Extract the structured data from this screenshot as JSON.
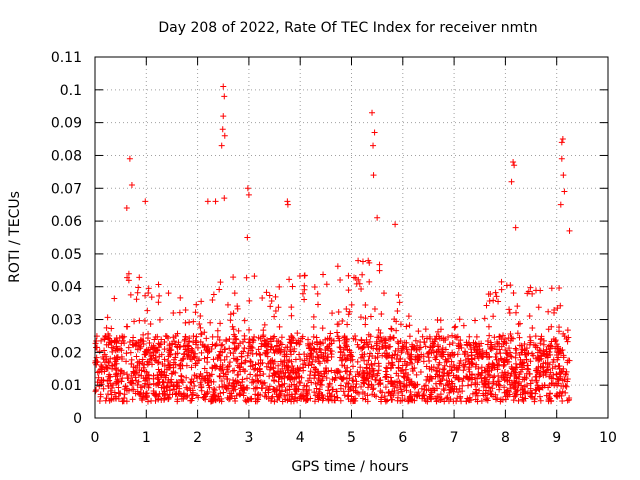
{
  "chart_data": {
    "type": "scatter",
    "title": "Day 208 of 2022, Rate Of TEC Index for receiver nmtn",
    "xlabel": "GPS time / hours",
    "ylabel": "ROTI / TECUs",
    "xlim": [
      0,
      10
    ],
    "ylim": [
      0,
      0.11
    ],
    "x_ticks": [
      "0",
      "1",
      "2",
      "3",
      "4",
      "5",
      "6",
      "7",
      "8",
      "9",
      "10"
    ],
    "y_ticks": [
      "0",
      "0.01",
      "0.02",
      "0.03",
      "0.04",
      "0.05",
      "0.06",
      "0.07",
      "0.08",
      "0.09",
      "0.1",
      "0.11"
    ],
    "grid": true,
    "marker": "+",
    "series_color": "#ff0000",
    "data_extent_hours": [
      0,
      9.25
    ],
    "baseline_range": [
      0.005,
      0.025
    ],
    "notable_points": [
      {
        "x": 0.68,
        "y": 0.079
      },
      {
        "x": 0.72,
        "y": 0.071
      },
      {
        "x": 0.62,
        "y": 0.064
      },
      {
        "x": 0.98,
        "y": 0.066
      },
      {
        "x": 2.2,
        "y": 0.066
      },
      {
        "x": 2.35,
        "y": 0.066
      },
      {
        "x": 2.5,
        "y": 0.101
      },
      {
        "x": 2.52,
        "y": 0.098
      },
      {
        "x": 2.5,
        "y": 0.092
      },
      {
        "x": 2.49,
        "y": 0.088
      },
      {
        "x": 2.53,
        "y": 0.086
      },
      {
        "x": 2.47,
        "y": 0.083
      },
      {
        "x": 2.52,
        "y": 0.067
      },
      {
        "x": 2.98,
        "y": 0.07
      },
      {
        "x": 3.0,
        "y": 0.068
      },
      {
        "x": 2.97,
        "y": 0.055
      },
      {
        "x": 3.75,
        "y": 0.066
      },
      {
        "x": 3.76,
        "y": 0.065
      },
      {
        "x": 5.4,
        "y": 0.093
      },
      {
        "x": 5.45,
        "y": 0.087
      },
      {
        "x": 5.42,
        "y": 0.083
      },
      {
        "x": 5.43,
        "y": 0.074
      },
      {
        "x": 5.5,
        "y": 0.061
      },
      {
        "x": 5.85,
        "y": 0.059
      },
      {
        "x": 8.15,
        "y": 0.078
      },
      {
        "x": 8.17,
        "y": 0.077
      },
      {
        "x": 8.12,
        "y": 0.072
      },
      {
        "x": 8.2,
        "y": 0.058
      },
      {
        "x": 9.12,
        "y": 0.085
      },
      {
        "x": 9.1,
        "y": 0.084
      },
      {
        "x": 9.1,
        "y": 0.079
      },
      {
        "x": 9.13,
        "y": 0.074
      },
      {
        "x": 9.15,
        "y": 0.069
      },
      {
        "x": 9.08,
        "y": 0.065
      },
      {
        "x": 9.25,
        "y": 0.057
      }
    ],
    "activity_envelope": [
      {
        "x": 0.0,
        "y": 0.03
      },
      {
        "x": 0.5,
        "y": 0.04
      },
      {
        "x": 0.75,
        "y": 0.05
      },
      {
        "x": 1.0,
        "y": 0.045
      },
      {
        "x": 1.5,
        "y": 0.038
      },
      {
        "x": 2.0,
        "y": 0.035
      },
      {
        "x": 2.5,
        "y": 0.045
      },
      {
        "x": 3.0,
        "y": 0.045
      },
      {
        "x": 3.5,
        "y": 0.04
      },
      {
        "x": 4.0,
        "y": 0.045
      },
      {
        "x": 4.5,
        "y": 0.045
      },
      {
        "x": 5.0,
        "y": 0.048
      },
      {
        "x": 5.5,
        "y": 0.048
      },
      {
        "x": 6.0,
        "y": 0.04
      },
      {
        "x": 6.5,
        "y": 0.03
      },
      {
        "x": 7.0,
        "y": 0.03
      },
      {
        "x": 7.5,
        "y": 0.034
      },
      {
        "x": 8.0,
        "y": 0.045
      },
      {
        "x": 8.5,
        "y": 0.04
      },
      {
        "x": 9.0,
        "y": 0.042
      },
      {
        "x": 9.25,
        "y": 0.035
      }
    ]
  }
}
